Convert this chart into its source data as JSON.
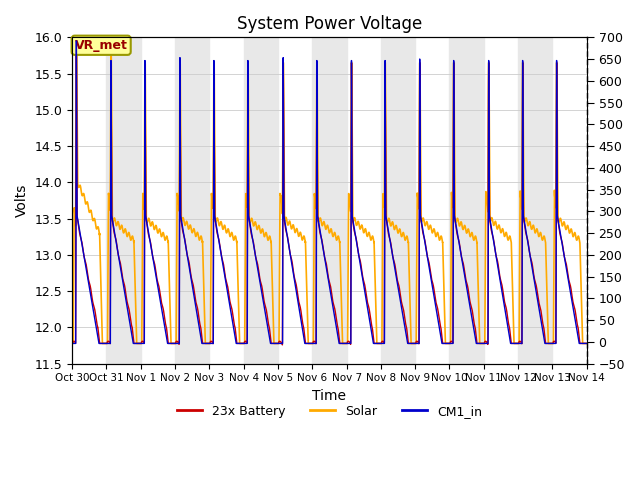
{
  "title": "System Power Voltage",
  "xlabel": "Time",
  "ylabel": "Volts",
  "ylim_left": [
    11.5,
    16.0
  ],
  "ylim_right": [
    -50,
    700
  ],
  "yticks_left": [
    11.5,
    12.0,
    12.5,
    13.0,
    13.5,
    14.0,
    14.5,
    15.0,
    15.5,
    16.0
  ],
  "yticks_right": [
    -50,
    0,
    50,
    100,
    150,
    200,
    250,
    300,
    350,
    400,
    450,
    500,
    550,
    600,
    650,
    700
  ],
  "num_days": 15,
  "xtick_labels": [
    "Oct 30",
    "Oct 31",
    "Nov 1",
    "Nov 2",
    "Nov 3",
    "Nov 4",
    "Nov 5",
    "Nov 6",
    "Nov 7",
    "Nov 8",
    "Nov 9",
    "Nov 10",
    "Nov 11",
    "Nov 12",
    "Nov 13",
    "Nov 14"
  ],
  "battery_color": "#cc0000",
  "solar_color": "#ffaa00",
  "cm1_color": "#0000cc",
  "legend_labels": [
    "23x Battery",
    "Solar",
    "CM1_in"
  ],
  "vr_met_label": "VR_met",
  "vr_met_box_color": "#ffff99",
  "vr_met_border_color": "#999900",
  "band_color": "#e8e8e8",
  "background_color": "#ffffff",
  "grid_color": "#cccccc",
  "pts_per_day": 500
}
